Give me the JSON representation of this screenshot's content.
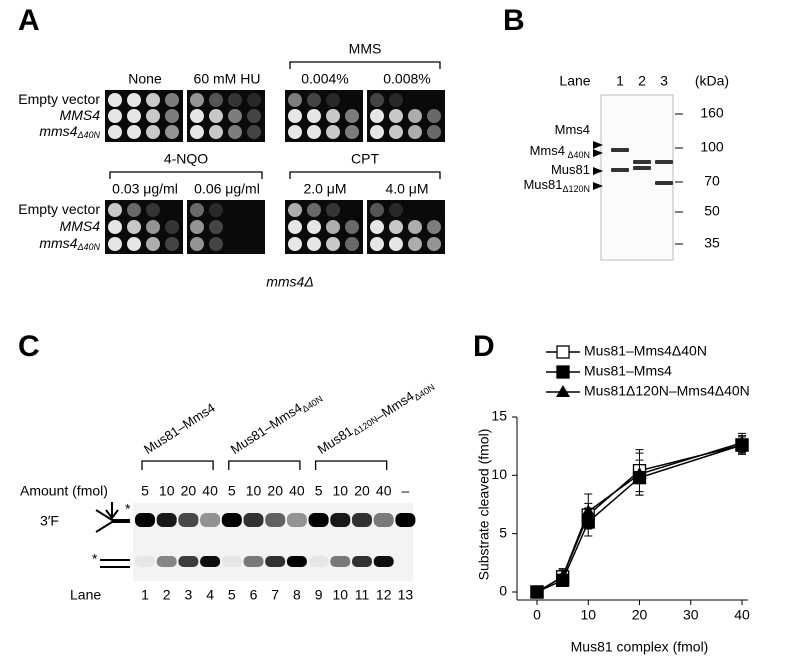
{
  "panel_a": {
    "label": "A",
    "top_columns": [
      "None",
      "60 mM HU"
    ],
    "mms_header": "MMS",
    "mms_columns": [
      "0.004%",
      "0.008%"
    ],
    "nqo_header": "4-NQO",
    "nqo_columns": [
      "0.03 μg/ml",
      "0.06 μg/ml"
    ],
    "cpt_header": "CPT",
    "cpt_columns": [
      "2.0 μM",
      "4.0 μM"
    ],
    "rows": [
      {
        "text": "Empty vector"
      },
      {
        "text": "MMS4",
        "italic": true
      },
      {
        "text": "mms4",
        "sub": "Δ40N",
        "italic": true
      }
    ],
    "strain": "mms4Δ"
  },
  "panel_b": {
    "label": "B",
    "lane_label": "Lane",
    "lanes": [
      "1",
      "2",
      "3"
    ],
    "unit": "(kDa)",
    "markers": [
      160,
      100,
      70,
      50,
      35
    ],
    "bands": [
      {
        "text": "Mms4"
      },
      {
        "text": "Mms4",
        "sub": " Δ40N"
      },
      {
        "text": "Mus81"
      },
      {
        "text": "Mus81",
        "sub": "Δ120N"
      }
    ]
  },
  "panel_c": {
    "label": "C",
    "groups": [
      [
        {
          "text": "Mus81–Mms4"
        }
      ],
      [
        {
          "text": "Mus81–Mms4"
        },
        {
          "sub": "Δ40N"
        }
      ],
      [
        {
          "text": "Mus81"
        },
        {
          "sub": "Δ120N"
        },
        {
          "text": "–Mms4"
        },
        {
          "sub": "Δ40N"
        }
      ]
    ],
    "amount_label": "Amount (fmol)",
    "amounts": [
      "5",
      "10",
      "20",
      "40",
      "5",
      "10",
      "20",
      "40",
      "5",
      "10",
      "20",
      "40",
      "–"
    ],
    "lane_label": "Lane",
    "lanes": [
      "1",
      "2",
      "3",
      "4",
      "5",
      "6",
      "7",
      "8",
      "9",
      "10",
      "11",
      "12",
      "13"
    ],
    "substrate_label": "3′F",
    "star": "*"
  },
  "panel_d_label": "D",
  "chart_data": {
    "type": "line",
    "x_label": "Mus81 complex (fmol)",
    "y_label": "Substrate cleaved (fmol)",
    "x": [
      0,
      5,
      10,
      20,
      40
    ],
    "xlim": [
      0,
      40
    ],
    "xticks": [
      0,
      10,
      20,
      30,
      40
    ],
    "ylim": [
      0,
      15
    ],
    "yticks": [
      0,
      5,
      10,
      15
    ],
    "series": [
      {
        "name": "Mus81–Mms4Δ40N",
        "marker": "open-square",
        "color": "#000000",
        "values": [
          0,
          1.3,
          6.6,
          10.4,
          12.6
        ],
        "errors": [
          0,
          0.7,
          1.0,
          1.8,
          0.7
        ]
      },
      {
        "name": "Mus81–Mms4",
        "marker": "square",
        "color": "#000000",
        "values": [
          0,
          1.0,
          6.0,
          9.8,
          12.6
        ],
        "errors": [
          0,
          0.5,
          1.2,
          1.5,
          0.8
        ]
      },
      {
        "name": "Mus81Δ120N–Mms4Δ40N",
        "marker": "triangle",
        "color": "#000000",
        "values": [
          0,
          1.3,
          6.9,
          10.1,
          12.8
        ],
        "errors": [
          0,
          0.6,
          1.5,
          1.8,
          0.8
        ]
      }
    ]
  }
}
